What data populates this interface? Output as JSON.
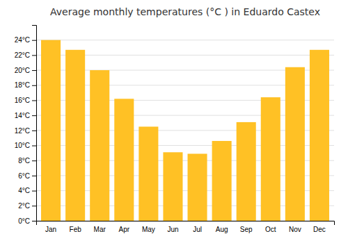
{
  "chart_data": {
    "type": "bar",
    "title": "Average monthly temperatures (°C ) in Eduardo Castex",
    "categories": [
      "Jan",
      "Feb",
      "Mar",
      "Apr",
      "May",
      "Jun",
      "Jul",
      "Aug",
      "Sep",
      "Oct",
      "Nov",
      "Dec"
    ],
    "values": [
      24.0,
      22.7,
      20.0,
      16.2,
      12.5,
      9.1,
      8.9,
      10.6,
      13.1,
      16.4,
      20.4,
      22.7
    ],
    "color": "#FFC125",
    "ylim": [
      0,
      26
    ],
    "yticks": [
      {
        "value": 0,
        "label": "0°C"
      },
      {
        "value": 2,
        "label": "2°C"
      },
      {
        "value": 4,
        "label": "4°C"
      },
      {
        "value": 6,
        "label": "6°C"
      },
      {
        "value": 8,
        "label": "8°C"
      },
      {
        "value": 10,
        "label": "10°C"
      },
      {
        "value": 12,
        "label": "12°C"
      },
      {
        "value": 14,
        "label": "14°C"
      },
      {
        "value": 16,
        "label": "16°C"
      },
      {
        "value": 18,
        "label": "18°C"
      },
      {
        "value": 20,
        "label": "20°C"
      },
      {
        "value": 22,
        "label": "22°C"
      },
      {
        "value": 24,
        "label": "24°C"
      }
    ],
    "grid": true
  }
}
